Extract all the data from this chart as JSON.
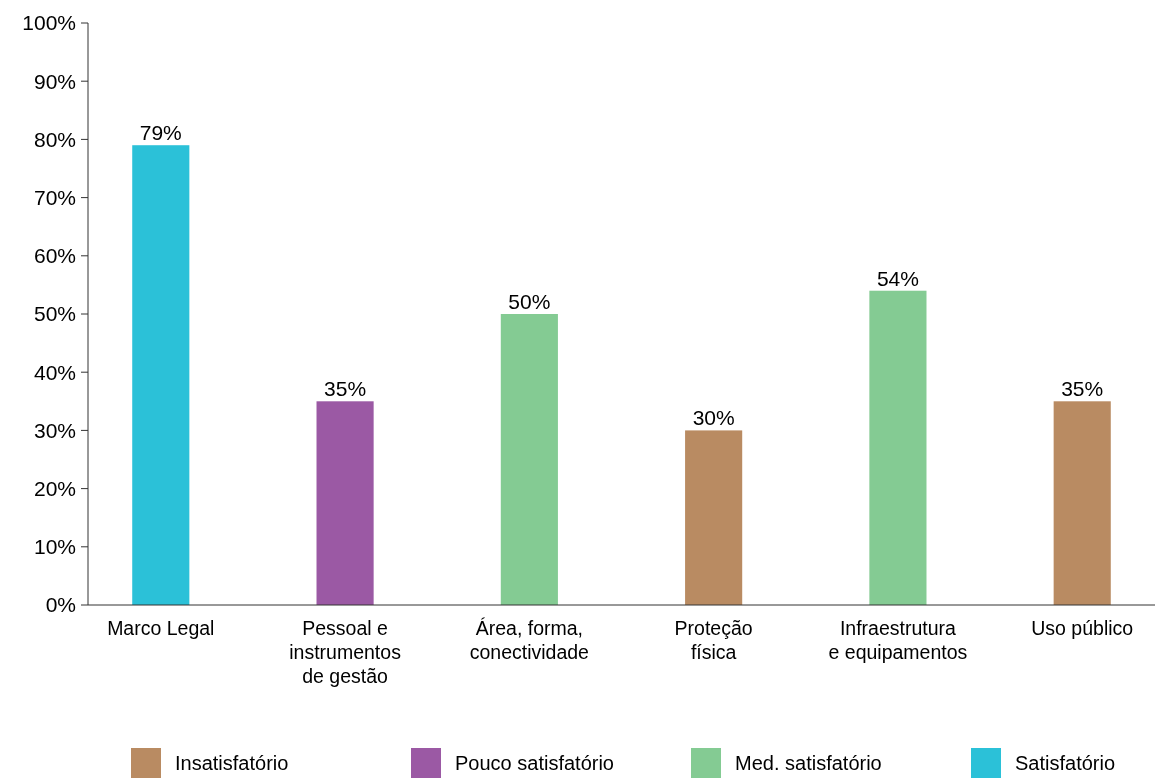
{
  "chart_data": {
    "type": "bar",
    "stacked": true,
    "categories": [
      "Marco Legal",
      "Pessoal e instrumentos de gestão",
      "Área, forma, conectividade",
      "Proteção física",
      "Infraestrutura e equipamentos",
      "Uso público"
    ],
    "series": [
      {
        "name": "Insatisfatório",
        "color": "#b98b62",
        "values": [
          null,
          null,
          null,
          30,
          null,
          35
        ]
      },
      {
        "name": "Pouco satisfatório",
        "color": "#9b59a4",
        "values": [
          null,
          35,
          null,
          null,
          null,
          null
        ]
      },
      {
        "name": "Med. satisfatório",
        "color": "#84cb93",
        "values": [
          null,
          null,
          50,
          null,
          54,
          null
        ]
      },
      {
        "name": "Satisfatório",
        "color": "#2bc1d8",
        "values": [
          79,
          null,
          null,
          null,
          null,
          null
        ]
      }
    ],
    "ylim": [
      0,
      100
    ],
    "yticks": [
      {
        "value": 0,
        "label": "0%"
      },
      {
        "value": 10,
        "label": "10%"
      },
      {
        "value": 20,
        "label": "20%"
      },
      {
        "value": 30,
        "label": "30%"
      },
      {
        "value": 40,
        "label": "40%"
      },
      {
        "value": 50,
        "label": "50%"
      },
      {
        "value": 60,
        "label": "60%"
      },
      {
        "value": 70,
        "label": "70%"
      },
      {
        "value": 80,
        "label": "80%"
      },
      {
        "value": 90,
        "label": "90%"
      },
      {
        "value": 100,
        "label": "100%"
      }
    ],
    "value_labels": [
      [
        "79%"
      ],
      [
        "35%"
      ],
      [
        "50%"
      ],
      [
        "30%"
      ],
      [
        "54%"
      ],
      [
        "35%"
      ]
    ],
    "legend": "bottom",
    "grid": false
  }
}
